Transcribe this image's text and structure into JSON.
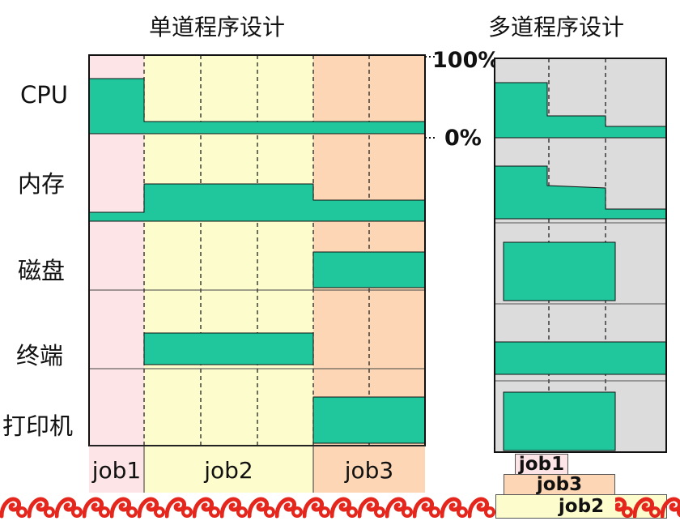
{
  "titles": {
    "single": "单道程序设计",
    "multi": "多道程序设计"
  },
  "rows": [
    "CPU",
    "内存",
    "磁盘",
    "终端",
    "打印机"
  ],
  "scale": {
    "top": "100%",
    "bottom": "0%"
  },
  "single_jobs": [
    "job1",
    "job2",
    "job3"
  ],
  "multi_jobs": [
    "job1",
    "job3",
    "job2"
  ],
  "colors": {
    "teal": "#20c79c",
    "job1_bg": "#fde4e6",
    "job2_bg": "#fdfccd",
    "job3_bg": "#fdd7b5",
    "multi_bg": "#dcdcdc",
    "border_red": "#e4261c"
  }
}
